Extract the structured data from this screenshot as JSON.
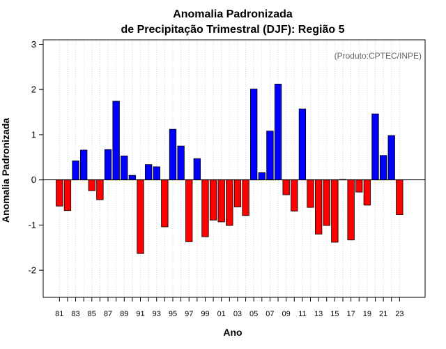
{
  "chart_data": {
    "type": "bar",
    "title": [
      "Anomalia Padronizada",
      "de Precipitação Trimestral (DJF): Região 5"
    ],
    "xlabel": "Ano",
    "ylabel": "Anomalia Padronizada",
    "annotation": "(Produto:CPTEC/INPE)",
    "ylim": [
      -2.6,
      3.1
    ],
    "yticks": [
      -2,
      -1,
      0,
      1,
      2,
      3
    ],
    "grid": "vertical dotted",
    "positive_color": "#0000ff",
    "negative_color": "#ff0000",
    "categories": [
      "81",
      "82",
      "83",
      "84",
      "85",
      "86",
      "87",
      "88",
      "89",
      "90",
      "91",
      "92",
      "93",
      "94",
      "95",
      "96",
      "97",
      "98",
      "99",
      "00",
      "01",
      "02",
      "03",
      "04",
      "05",
      "06",
      "07",
      "08",
      "09",
      "10",
      "11",
      "12",
      "13",
      "14",
      "15",
      "16",
      "17",
      "18",
      "19",
      "20",
      "21",
      "22",
      "23"
    ],
    "xtick_labels": [
      "81",
      "83",
      "85",
      "87",
      "89",
      "91",
      "93",
      "95",
      "97",
      "99",
      "01",
      "03",
      "05",
      "07",
      "09",
      "11",
      "13",
      "15",
      "17",
      "19",
      "21",
      "23"
    ],
    "values": [
      -0.58,
      -0.68,
      0.42,
      0.66,
      -0.24,
      -0.44,
      0.67,
      1.74,
      0.53,
      0.1,
      -1.63,
      0.34,
      0.29,
      -1.04,
      1.12,
      0.75,
      -1.37,
      0.47,
      -1.26,
      -0.89,
      -0.93,
      -1.01,
      -0.6,
      -0.79,
      2.01,
      0.16,
      1.08,
      2.12,
      -0.33,
      -0.69,
      1.57,
      -0.61,
      -1.2,
      -1.01,
      -1.38,
      0.01,
      -1.33,
      -0.27,
      -0.56,
      1.46,
      0.54,
      0.98,
      -0.77
    ]
  }
}
